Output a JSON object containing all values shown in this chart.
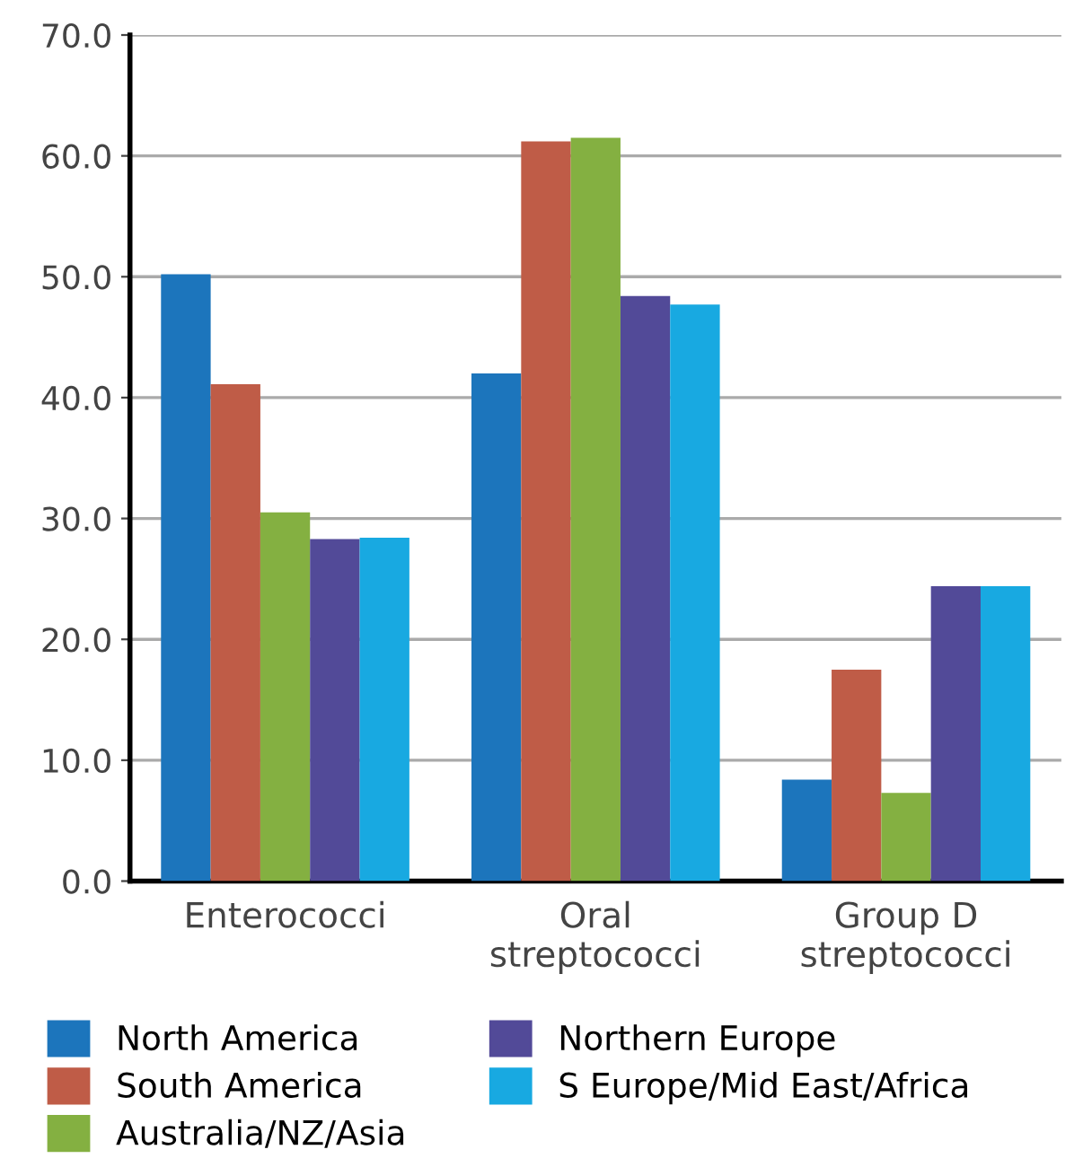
{
  "chart_data": {
    "type": "bar",
    "categories": [
      "Enterococci",
      "Oral\nstreptococci",
      "Group D\nstreptococci"
    ],
    "series": [
      {
        "name": "North America",
        "color": "#1c75bc",
        "values": [
          50.2,
          42.0,
          8.4
        ]
      },
      {
        "name": "South America",
        "color": "#bf5c47",
        "values": [
          41.1,
          61.2,
          17.5
        ]
      },
      {
        "name": "Australia/NZ/Asia",
        "color": "#84b041",
        "values": [
          30.5,
          61.5,
          7.3
        ]
      },
      {
        "name": "Northern Europe",
        "color": "#524a98",
        "values": [
          28.3,
          48.4,
          24.4
        ]
      },
      {
        "name": "S Europe/Mid East/Africa",
        "color": "#18a9e1",
        "values": [
          28.4,
          47.7,
          24.4
        ]
      }
    ],
    "ylim": [
      0,
      70
    ],
    "yticks": [
      {
        "value": 0,
        "label": "0.0"
      },
      {
        "value": 10,
        "label": "10.0"
      },
      {
        "value": 20,
        "label": "20.0"
      },
      {
        "value": 30,
        "label": "30.0"
      },
      {
        "value": 40,
        "label": "40.0"
      },
      {
        "value": 50,
        "label": "50.0"
      },
      {
        "value": 60,
        "label": "60.0"
      },
      {
        "value": 70,
        "label": "70.0"
      }
    ],
    "grid": "y",
    "legend": "bottom"
  }
}
